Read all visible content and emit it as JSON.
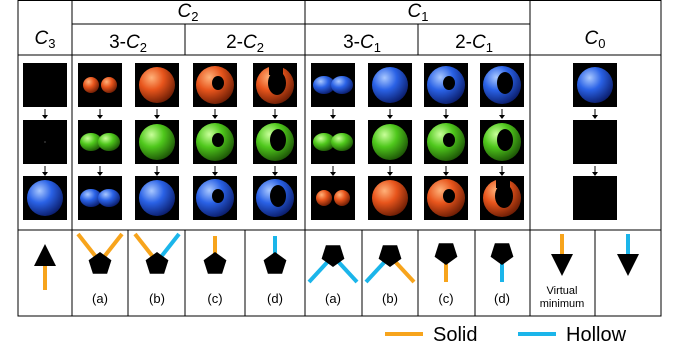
{
  "top_headers": [
    {
      "letter": "C",
      "sub": "3"
    },
    {
      "letter": "C",
      "sub": "2"
    },
    {
      "letter": "C",
      "sub": "1"
    },
    {
      "letter": "C",
      "sub": "0"
    }
  ],
  "sub_headers": [
    {
      "prefix": "3-",
      "letter": "C",
      "sub": "2"
    },
    {
      "prefix": "2-",
      "letter": "C",
      "sub": "2"
    },
    {
      "prefix": "3-",
      "letter": "C",
      "sub": "1"
    },
    {
      "prefix": "2-",
      "letter": "C",
      "sub": "1"
    }
  ],
  "panel_labels": [
    "(a)",
    "(b)",
    "(c)",
    "(d)",
    "(a)",
    "(b)",
    "(c)",
    "(d)"
  ],
  "note": [
    "Virtual",
    "minimum"
  ],
  "legend": [
    {
      "label": "Solid",
      "color": "#f7a41c"
    },
    {
      "label": "Hollow",
      "color": "#1bb5ea"
    }
  ]
}
